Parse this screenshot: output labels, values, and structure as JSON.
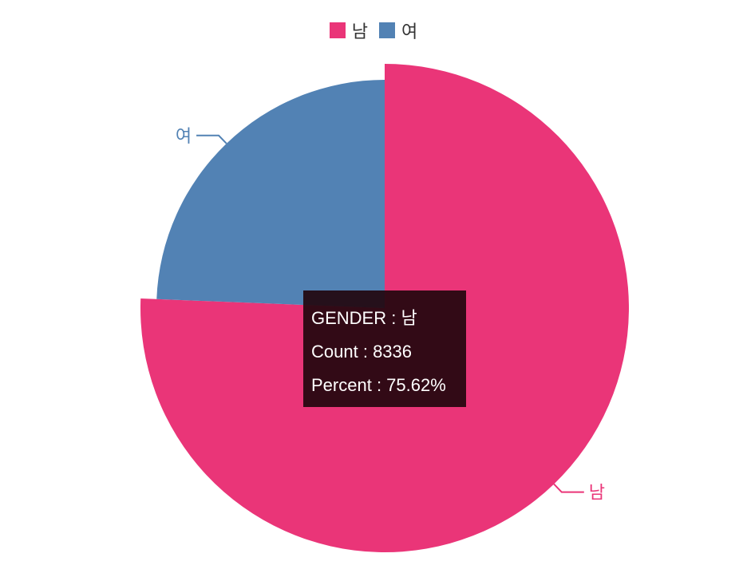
{
  "chart_data": {
    "type": "pie",
    "legend_position": "top-center",
    "slices": [
      {
        "label": "남",
        "value": 8336,
        "percent": 75.62,
        "color": "#EA3578"
      },
      {
        "label": "여",
        "value": 2687,
        "percent": 24.38,
        "color": "#5282B4"
      }
    ]
  },
  "legend": [
    {
      "label": "남",
      "color": "#EA3578"
    },
    {
      "label": "여",
      "color": "#5282B4"
    }
  ],
  "tooltip": {
    "field1_label": "GENDER",
    "field1_value": "남",
    "field2_label": "Count",
    "field2_value": "8336",
    "field3_label": "Percent",
    "field3_value": "75.62%"
  }
}
